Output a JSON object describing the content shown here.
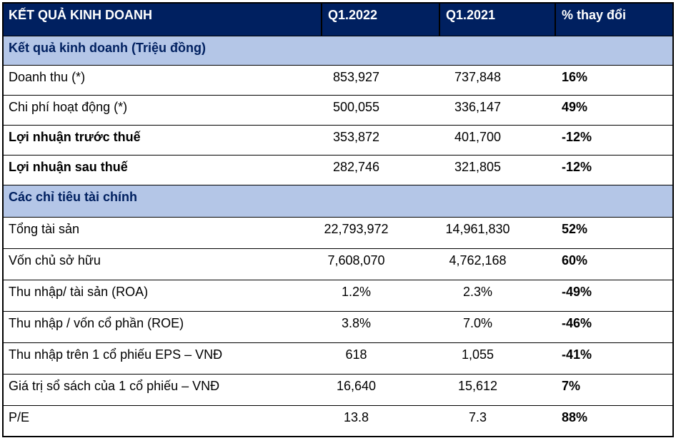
{
  "colors": {
    "header_bg": "#002060",
    "header_text": "#ffffff",
    "section_bg": "#b4c6e7",
    "section_text": "#002060",
    "body_text": "#000000",
    "border": "#000000"
  },
  "table": {
    "columns": [
      {
        "label": "KẾT QUẢ KINH DOANH"
      },
      {
        "label": "Q1.2022"
      },
      {
        "label": "Q1.2021"
      },
      {
        "label": "% thay đổi"
      }
    ],
    "sections": [
      {
        "title": "Kết quả kinh doanh (Triệu đồng)",
        "rows": [
          {
            "label": "Doanh thu (*)",
            "q1_2022": "853,927",
            "q1_2021": "737,848",
            "change": "16%"
          },
          {
            "label": "Chi phí hoạt động (*)",
            "q1_2022": "500,055",
            "q1_2021": "336,147",
            "change": "49%"
          },
          {
            "label": "Lợi nhuận trước thuế",
            "q1_2022": "353,872",
            "q1_2021": "401,700",
            "change": "-12%"
          },
          {
            "label": "Lợi nhuận sau thuế",
            "q1_2022": "282,746",
            "q1_2021": "321,805",
            "change": "-12%"
          }
        ]
      },
      {
        "title": "Các chỉ tiêu tài chính",
        "rows": [
          {
            "label": "Tổng tài sản",
            "q1_2022": "22,793,972",
            "q1_2021": "14,961,830",
            "change": "52%"
          },
          {
            "label": "Vốn chủ sở hữu",
            "q1_2022": "7,608,070",
            "q1_2021": "4,762,168",
            "change": "60%"
          },
          {
            "label": "Thu nhập/ tài sản (ROA)",
            "q1_2022": "1.2%",
            "q1_2021": "2.3%",
            "change": "-49%"
          },
          {
            "label": "Thu nhập / vốn cổ phần (ROE)",
            "q1_2022": "3.8%",
            "q1_2021": "7.0%",
            "change": "-46%"
          },
          {
            "label": "Thu nhập trên 1 cổ phiếu EPS – VNĐ",
            "q1_2022": "618",
            "q1_2021": "1,055",
            "change": "-41%"
          },
          {
            "label": "Giá trị sổ sách của 1 cổ phiếu – VNĐ",
            "q1_2022": "16,640",
            "q1_2021": "15,612",
            "change": "7%"
          },
          {
            "label": "P/E",
            "q1_2022": "13.8",
            "q1_2021": "7.3",
            "change": "88%"
          }
        ]
      }
    ]
  }
}
